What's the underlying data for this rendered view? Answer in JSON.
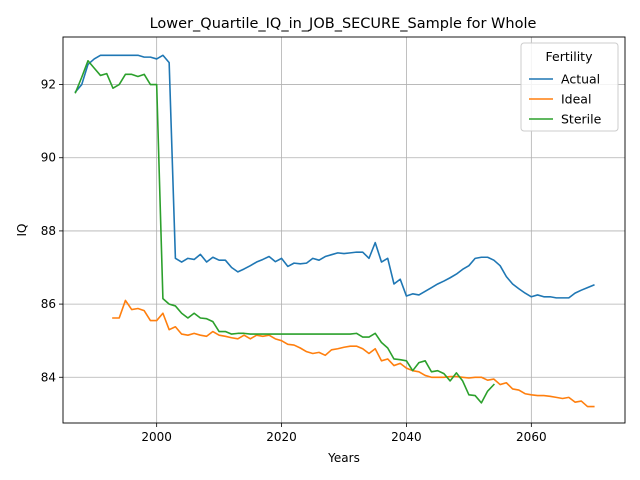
{
  "chart_data": {
    "type": "line",
    "title": "Lower_Quartile_IQ_in_JOB_SECURE_Sample for Whole",
    "xlabel": "Years",
    "ylabel": "IQ",
    "xlim": [
      1985,
      2075
    ],
    "ylim": [
      82.75,
      93.3
    ],
    "xticks": [
      2000,
      2020,
      2040,
      2060
    ],
    "yticks": [
      84,
      86,
      88,
      90,
      92
    ],
    "grid": true,
    "legend": {
      "title": "Fertility",
      "placement": "upper right"
    },
    "series": [
      {
        "name": "Actual",
        "color": "#1f77b4",
        "x": [
          1987,
          1988,
          1989,
          1990,
          1991,
          1992,
          1993,
          1994,
          1995,
          1996,
          1997,
          1998,
          1999,
          2000,
          2001,
          2002,
          2003,
          2004,
          2005,
          2006,
          2007,
          2008,
          2009,
          2010,
          2011,
          2012,
          2013,
          2014,
          2015,
          2016,
          2017,
          2018,
          2019,
          2020,
          2021,
          2022,
          2023,
          2024,
          2025,
          2026,
          2027,
          2028,
          2029,
          2030,
          2031,
          2032,
          2033,
          2034,
          2035,
          2036,
          2037,
          2038,
          2039,
          2040,
          2041,
          2042,
          2043,
          2044,
          2045,
          2046,
          2047,
          2048,
          2049,
          2050,
          2051,
          2052,
          2053,
          2054,
          2055,
          2056,
          2057,
          2058,
          2059,
          2060,
          2061,
          2062,
          2063,
          2064,
          2065,
          2066,
          2067,
          2068,
          2069,
          2070
        ],
        "values": [
          91.8,
          92.0,
          92.55,
          92.7,
          92.8,
          92.8,
          92.8,
          92.8,
          92.8,
          92.8,
          92.8,
          92.75,
          92.75,
          92.7,
          92.8,
          92.6,
          87.25,
          87.15,
          87.25,
          87.22,
          87.36,
          87.15,
          87.28,
          87.2,
          87.2,
          87.0,
          86.88,
          86.96,
          87.05,
          87.15,
          87.22,
          87.3,
          87.16,
          87.25,
          87.03,
          87.12,
          87.1,
          87.12,
          87.25,
          87.2,
          87.3,
          87.35,
          87.4,
          87.38,
          87.4,
          87.42,
          87.42,
          87.25,
          87.68,
          87.15,
          87.25,
          86.55,
          86.68,
          86.22,
          86.28,
          86.25,
          86.35,
          86.45,
          86.55,
          86.63,
          86.72,
          86.82,
          86.95,
          87.05,
          87.25,
          87.28,
          87.28,
          87.2,
          87.05,
          86.75,
          86.55,
          86.42,
          86.3,
          86.2,
          86.25,
          86.2,
          86.2,
          86.17,
          86.17,
          86.17,
          86.3,
          86.38,
          86.45,
          86.52
        ]
      },
      {
        "name": "Ideal",
        "color": "#ff7f0e",
        "x": [
          1993,
          1994,
          1995,
          1996,
          1997,
          1998,
          1999,
          2000,
          2001,
          2002,
          2003,
          2004,
          2005,
          2006,
          2007,
          2008,
          2009,
          2010,
          2011,
          2012,
          2013,
          2014,
          2015,
          2016,
          2017,
          2018,
          2019,
          2020,
          2021,
          2022,
          2023,
          2024,
          2025,
          2026,
          2027,
          2028,
          2029,
          2030,
          2031,
          2032,
          2033,
          2034,
          2035,
          2036,
          2037,
          2038,
          2039,
          2040,
          2041,
          2042,
          2043,
          2044,
          2045,
          2046,
          2047,
          2048,
          2049,
          2050,
          2051,
          2052,
          2053,
          2054,
          2055,
          2056,
          2057,
          2058,
          2059,
          2060,
          2061,
          2062,
          2063,
          2064,
          2065,
          2066,
          2067,
          2068,
          2069,
          2070
        ],
        "values": [
          85.62,
          85.62,
          86.1,
          85.85,
          85.88,
          85.82,
          85.55,
          85.55,
          85.75,
          85.3,
          85.38,
          85.18,
          85.15,
          85.2,
          85.15,
          85.12,
          85.25,
          85.15,
          85.12,
          85.08,
          85.05,
          85.15,
          85.05,
          85.15,
          85.12,
          85.15,
          85.05,
          85.0,
          84.9,
          84.88,
          84.8,
          84.7,
          84.65,
          84.68,
          84.6,
          84.75,
          84.78,
          84.82,
          84.85,
          84.85,
          84.78,
          84.65,
          84.78,
          84.45,
          84.5,
          84.32,
          84.38,
          84.25,
          84.18,
          84.15,
          84.05,
          84.0,
          84.0,
          84.0,
          84.02,
          84.02,
          84.0,
          83.98,
          84.0,
          84.0,
          83.92,
          83.95,
          83.8,
          83.85,
          83.68,
          83.65,
          83.55,
          83.52,
          83.5,
          83.5,
          83.48,
          83.45,
          83.42,
          83.45,
          83.32,
          83.35,
          83.2,
          83.2
        ]
      },
      {
        "name": "Sterile",
        "color": "#2ca02c",
        "x": [
          1987,
          1988,
          1989,
          1990,
          1991,
          1992,
          1993,
          1994,
          1995,
          1996,
          1997,
          1998,
          1999,
          2000,
          2001,
          2002,
          2003,
          2004,
          2005,
          2006,
          2007,
          2008,
          2009,
          2010,
          2011,
          2012,
          2013,
          2014,
          2015,
          2016,
          2017,
          2018,
          2019,
          2020,
          2021,
          2022,
          2023,
          2024,
          2025,
          2026,
          2027,
          2028,
          2029,
          2030,
          2031,
          2032,
          2033,
          2034,
          2035,
          2036,
          2037,
          2038,
          2039,
          2040,
          2041,
          2042,
          2043,
          2044,
          2045,
          2046,
          2047,
          2048,
          2049,
          2050,
          2051,
          2052,
          2053,
          2054
        ],
        "values": [
          91.78,
          92.2,
          92.65,
          92.45,
          92.25,
          92.3,
          91.9,
          92.0,
          92.28,
          92.28,
          92.22,
          92.28,
          92.0,
          92.0,
          86.15,
          86.0,
          85.95,
          85.75,
          85.62,
          85.75,
          85.62,
          85.6,
          85.52,
          85.25,
          85.25,
          85.18,
          85.2,
          85.2,
          85.18,
          85.18,
          85.18,
          85.18,
          85.18,
          85.18,
          85.18,
          85.18,
          85.18,
          85.18,
          85.18,
          85.18,
          85.18,
          85.18,
          85.18,
          85.18,
          85.18,
          85.2,
          85.1,
          85.1,
          85.2,
          84.95,
          84.8,
          84.5,
          84.48,
          84.45,
          84.18,
          84.4,
          84.45,
          84.15,
          84.18,
          84.1,
          83.9,
          84.12,
          83.9,
          83.52,
          83.5,
          83.3,
          83.62,
          83.8
        ]
      }
    ]
  }
}
